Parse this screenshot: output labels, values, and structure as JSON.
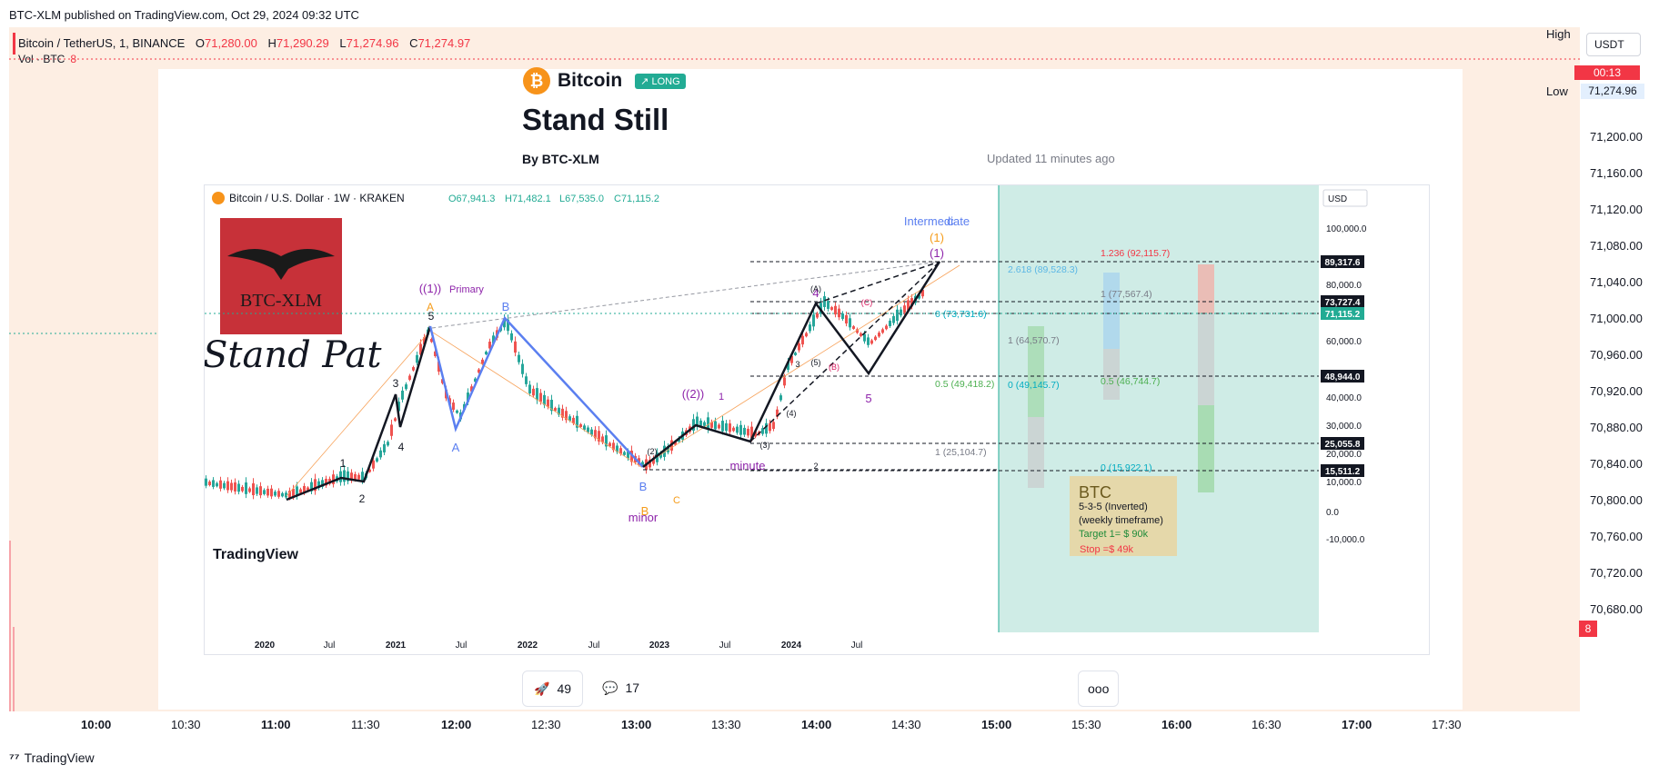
{
  "header": {
    "published": "BTC-XLM published on TradingView.com, Oct 29, 2024 09:32 UTC"
  },
  "symbol": {
    "name": "Bitcoin / TetherUS, 1, BINANCE",
    "o_label": "O",
    "o": "71,280.00",
    "h_label": "H",
    "h": "71,290.29",
    "l_label": "L",
    "l": "71,274.96",
    "c_label": "C",
    "c": "71,274.97"
  },
  "volume": {
    "label": "Vol · BTC",
    "value": "8"
  },
  "idea": {
    "coin_letter": "₿",
    "ticker": "Bitcoin",
    "badge": "↗ LONG",
    "title": "Stand Still",
    "author": "By BTC-XLM",
    "updated": "Updated 11 minutes ago",
    "boosts": "49",
    "comments": "17",
    "more": "ooo"
  },
  "inner_chart": {
    "header": {
      "name": "Bitcoin / U.S. Dollar · 1W · KRAKEN",
      "o": "O67,941.3",
      "h": "H71,482.1",
      "l": "L67,535.0",
      "c": "C71,115.2"
    },
    "currency": "USD",
    "logo_text": "BTC-XLM",
    "handwriting": "Stand Pat",
    "watermark": "TradingView",
    "note": {
      "title": "BTC",
      "line1": "5-3-5 (Inverted)",
      "line2": "(weekly timeframe)",
      "target": "Target 1= $ 90k",
      "stop": "Stop =$ 49k"
    }
  },
  "chart_data": {
    "type": "line",
    "title": "Stand Still",
    "main_price_axis": {
      "ticks": [
        "71,200.00",
        "71,160.00",
        "71,120.00",
        "71,080.00",
        "71,040.00",
        "71,000.00",
        "70,960.00",
        "70,920.00",
        "70,880.00",
        "70,840.00",
        "70,800.00",
        "70,760.00",
        "70,720.00",
        "70,680.00"
      ],
      "last_price": "71,274.96",
      "countdown": "00:13",
      "high_label": "High",
      "low_label": "Low",
      "vol_badge": "8",
      "currency": "USDT"
    },
    "time_axis": {
      "ticks": [
        "10:00",
        "10:30",
        "11:00",
        "11:30",
        "12:00",
        "12:30",
        "13:00",
        "13:30",
        "14:00",
        "14:30",
        "15:00",
        "15:30",
        "16:00",
        "16:30",
        "17:00",
        "17:30"
      ],
      "bold": [
        "10:00",
        "11:00",
        "12:00",
        "13:00",
        "14:00",
        "15:00",
        "16:00",
        "17:00"
      ]
    },
    "inner": {
      "x_ticks": [
        "2020",
        "Jul",
        "2021",
        "Jul",
        "2022",
        "Jul",
        "2023",
        "Jul",
        "2024",
        "Jul"
      ],
      "y_ticks": [
        "100,000.0",
        "80,000.0",
        "60,000.0",
        "40,000.0",
        "30,000.0",
        "20,000.0",
        "10,000.0",
        "0.0",
        "-10,000.0"
      ],
      "price_labels": [
        "89,317.6",
        "73,727.4",
        "71,115.2",
        "48,944.0",
        "25,055.8",
        "15,511.2"
      ],
      "wave_labels": [
        "1",
        "2",
        "3",
        "4",
        "5",
        "((1))",
        "Primary",
        "A",
        "B",
        "A",
        "B",
        "C",
        "B",
        "minor",
        "((2))",
        "1",
        "minute",
        "2",
        "3",
        "4",
        "5",
        "(1)",
        "Intermediate",
        "C",
        "(1)",
        "(2)",
        "(3)",
        "(4)",
        "(5)",
        "(A)",
        "(B)",
        "(C)"
      ],
      "fib_levels": [
        "1.236 (92,115.7)",
        "1 (77,567.4)",
        "0.5 (46,744.7)",
        "0 (15,922.1)",
        "2.618 (89,528.3)",
        "1 (64,570.7)",
        "0 (49,145.7)",
        "0 (73,731.6)",
        "0.5 (49,418.2)",
        "1 (25,104.7)"
      ]
    }
  },
  "footer": {
    "brand": "TradingView"
  }
}
